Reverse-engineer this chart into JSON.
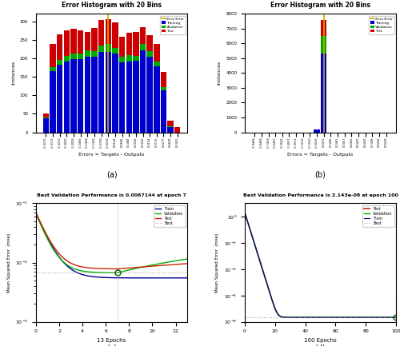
{
  "title": "Error Histogram with 20 Bins",
  "xlabel": "Errors = Targets - Outputs",
  "ylabel_hist": "Instances",
  "legend_hist": [
    "Training",
    "Validation",
    "Test",
    "Zero Error"
  ],
  "colors_hist": [
    "#0000cc",
    "#00aa00",
    "#cc0000",
    "#ccaa00"
  ],
  "subplot_a_bins": [
    -0.4275,
    -0.4711,
    -0.4153,
    -0.359,
    -0.3028,
    -0.2466,
    -0.1904,
    -0.1342,
    -0.0799,
    -0.0218,
    0.01439,
    0.06058,
    0.1468,
    0.201,
    0.2592,
    0.3154,
    0.3715,
    0.4277,
    0.4839,
    0.5401
  ],
  "subplot_a_train": [
    38,
    165,
    182,
    192,
    197,
    198,
    204,
    205,
    218,
    218,
    212,
    189,
    192,
    193,
    221,
    204,
    178,
    114,
    15,
    0
  ],
  "subplot_a_val": [
    3,
    12,
    14,
    15,
    15,
    15,
    18,
    15,
    17,
    20,
    16,
    15,
    16,
    14,
    17,
    15,
    14,
    9,
    1,
    0
  ],
  "subplot_a_test": [
    10,
    62,
    68,
    68,
    68,
    62,
    48,
    62,
    68,
    68,
    68,
    54,
    61,
    63,
    45,
    43,
    46,
    41,
    16,
    15
  ],
  "subplot_a_ylim": [
    0,
    320
  ],
  "subplot_a_yticks": [
    0,
    50,
    100,
    150,
    200,
    250,
    300
  ],
  "subplot_a_zero_bin_idx": 9,
  "subplot_b_bins": [
    -0.9484,
    -0.8488,
    -0.7493,
    -0.6497,
    -0.5502,
    -0.4507,
    -0.3511,
    -0.2516,
    -0.152,
    -0.0525,
    0.04708,
    0.1466,
    0.2461,
    0.3457,
    0.4452,
    0.5447,
    0.6443,
    0.7438,
    0.8434,
    0.9429
  ],
  "subplot_b_train": [
    0,
    0,
    0,
    0,
    0,
    0,
    0,
    0,
    0,
    200,
    5300,
    0,
    0,
    0,
    0,
    0,
    0,
    0,
    0,
    0
  ],
  "subplot_b_val": [
    0,
    0,
    0,
    0,
    0,
    0,
    0,
    0,
    0,
    0,
    1200,
    0,
    0,
    0,
    0,
    0,
    0,
    0,
    0,
    0
  ],
  "subplot_b_test": [
    0,
    0,
    0,
    0,
    0,
    0,
    0,
    0,
    0,
    0,
    1100,
    0,
    0,
    0,
    0,
    0,
    0,
    0,
    0,
    0
  ],
  "subplot_b_ylim": [
    0,
    8000
  ],
  "subplot_b_yticks": [
    0,
    1000,
    2000,
    3000,
    4000,
    5000,
    6000,
    7000,
    8000
  ],
  "subplot_b_zero_bin_idx": 10,
  "subplot_c_title": "Best Validation Performance is 0.0067144 at epoch 7",
  "subplot_c_xlabel": "13 Epochs",
  "subplot_c_ylabel": "Mean Squared Error  (mse)",
  "subplot_c_best_epoch": 7,
  "subplot_c_best_val": 0.0067144,
  "subplot_c_epochs": 13,
  "subplot_c_legend": [
    "Train",
    "Validation",
    "Test",
    "Best"
  ],
  "subplot_c_colors": [
    "#000099",
    "#00aa00",
    "#cc2200",
    "#aaaaaa"
  ],
  "subplot_d_title": "Best Validation Performance is 2.143e-08 at epoch 100",
  "subplot_d_xlabel": "100 Epochs",
  "subplot_d_ylabel": "Mean Squared Error  (mse)",
  "subplot_d_best_epoch": 100,
  "subplot_d_best_val": 2.143e-08,
  "subplot_d_epochs": 100,
  "subplot_d_legend": [
    "Train",
    "Validation",
    "Test",
    "Best"
  ],
  "subplot_d_colors": [
    "#000099",
    "#00aa00",
    "#cc2200",
    "#aaaaaa"
  ]
}
